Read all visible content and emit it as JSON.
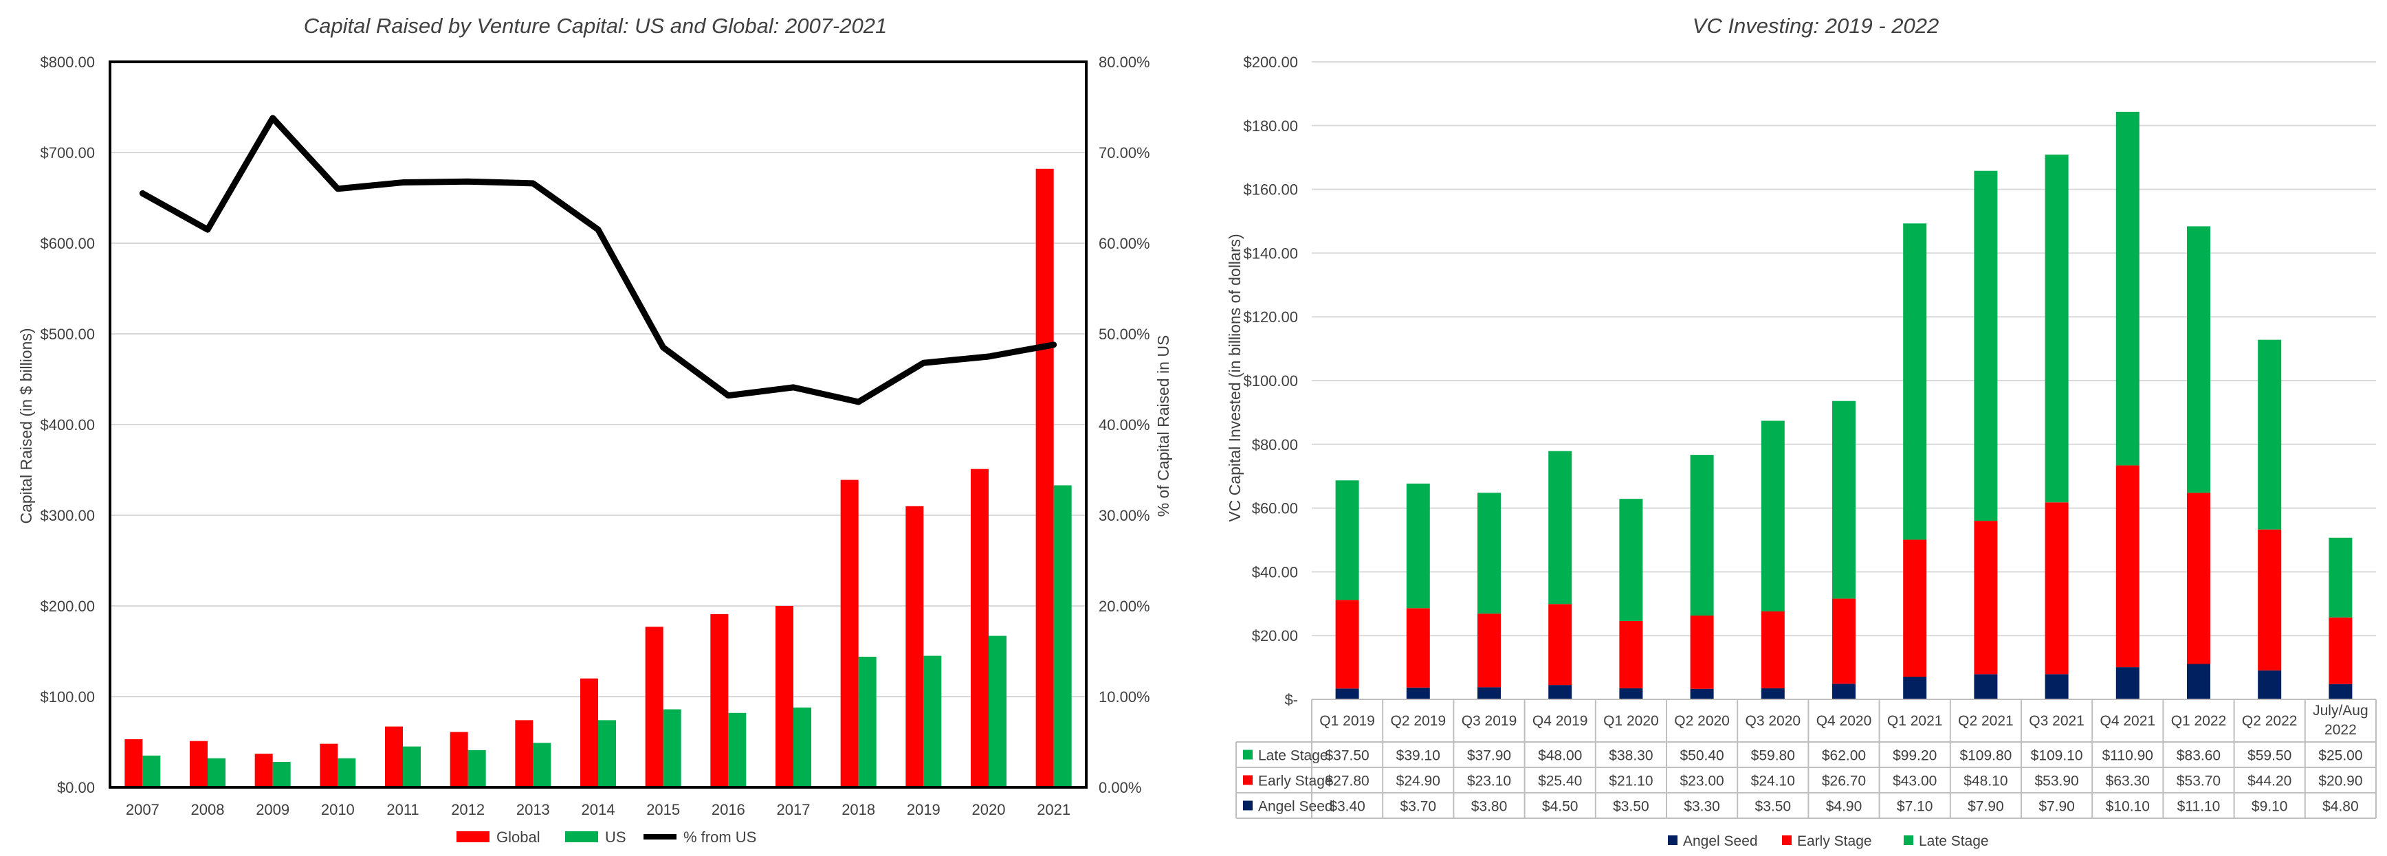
{
  "chart_data": [
    {
      "type": "bar",
      "title": "Capital Raised by Venture Capital: US and Global: 2007-2021",
      "ylabel": "Capital Raised (in $ billions)",
      "y2label": "% of Capital Raised in US",
      "ylim": [
        0,
        800
      ],
      "y2lim": [
        0,
        0.8
      ],
      "yticks": [
        "$0.00",
        "$100.00",
        "$200.00",
        "$300.00",
        "$400.00",
        "$500.00",
        "$600.00",
        "$700.00",
        "$800.00"
      ],
      "y2ticks": [
        "0.00%",
        "10.00%",
        "20.00%",
        "30.00%",
        "40.00%",
        "50.00%",
        "60.00%",
        "70.00%",
        "80.00%"
      ],
      "categories": [
        "2007",
        "2008",
        "2009",
        "2010",
        "2011",
        "2012",
        "2013",
        "2014",
        "2015",
        "2016",
        "2017",
        "2018",
        "2019",
        "2020",
        "2021"
      ],
      "series": [
        {
          "name": "Global",
          "type": "bar",
          "axis": "left",
          "color": "#ff0000",
          "values": [
            53,
            51,
            37,
            48,
            67,
            61,
            74,
            120,
            177,
            191,
            200,
            339,
            310,
            351,
            682
          ]
        },
        {
          "name": "US",
          "type": "bar",
          "axis": "left",
          "color": "#00b050",
          "values": [
            35,
            32,
            28,
            32,
            45,
            41,
            49,
            74,
            86,
            82,
            88,
            144,
            145,
            167,
            333
          ]
        },
        {
          "name": "% from US",
          "type": "line",
          "axis": "right",
          "color": "#000000",
          "values": [
            0.655,
            0.615,
            0.738,
            0.66,
            0.667,
            0.668,
            0.666,
            0.615,
            0.485,
            0.432,
            0.441,
            0.425,
            0.468,
            0.475,
            0.488
          ]
        }
      ],
      "legend_position": "bottom",
      "grid": true
    },
    {
      "type": "bar",
      "stacked": true,
      "title": "VC Investing: 2019 - 2022",
      "ylabel": "VC Capital  Invested (in billions of dollars)",
      "ylim": [
        0,
        200
      ],
      "yticks": [
        "$-",
        "$20.00",
        "$40.00",
        "$60.00",
        "$80.00",
        "$100.00",
        "$120.00",
        "$140.00",
        "$160.00",
        "$180.00",
        "$200.00"
      ],
      "categories": [
        "Q1 2019",
        "Q2 2019",
        "Q3 2019",
        "Q4 2019",
        "Q1 2020",
        "Q2 2020",
        "Q3 2020",
        "Q4 2020",
        "Q1 2021",
        "Q2 2021",
        "Q3 2021",
        "Q4 2021",
        "Q1 2022",
        "Q2 2022",
        "July/Aug 2022"
      ],
      "series": [
        {
          "name": "Angel Seed",
          "color": "#002060",
          "values": [
            3.4,
            3.7,
            3.8,
            4.5,
            3.5,
            3.3,
            3.5,
            4.9,
            7.1,
            7.9,
            7.9,
            10.1,
            11.1,
            9.1,
            4.8
          ],
          "labels": [
            "$3.40",
            "$3.70",
            "$3.80",
            "$4.50",
            "$3.50",
            "$3.30",
            "$3.50",
            "$4.90",
            "$7.10",
            "$7.90",
            "$7.90",
            "$10.10",
            "$11.10",
            "$9.10",
            "$4.80"
          ]
        },
        {
          "name": "Early Stage",
          "color": "#ff0000",
          "values": [
            27.8,
            24.9,
            23.1,
            25.4,
            21.1,
            23.0,
            24.1,
            26.7,
            43.0,
            48.1,
            53.9,
            63.3,
            53.7,
            44.2,
            20.9
          ],
          "labels": [
            "$27.80",
            "$24.90",
            "$23.10",
            "$25.40",
            "$21.10",
            "$23.00",
            "$24.10",
            "$26.70",
            "$43.00",
            "$48.10",
            "$53.90",
            "$63.30",
            "$53.70",
            "$44.20",
            "$20.90"
          ]
        },
        {
          "name": "Late Stage",
          "color": "#00b050",
          "values": [
            37.5,
            39.1,
            37.9,
            48.0,
            38.3,
            50.4,
            59.8,
            62.0,
            99.2,
            109.8,
            109.1,
            110.9,
            83.6,
            59.5,
            25.0
          ],
          "labels": [
            "$37.50",
            "$39.10",
            "$37.90",
            "$48.00",
            "$38.30",
            "$50.40",
            "$59.80",
            "$62.00",
            "$99.20",
            "$109.80",
            "$109.10",
            "$110.90",
            "$83.60",
            "$59.50",
            "$25.00"
          ]
        }
      ],
      "table_rows": [
        "Late Stage",
        "Early Stage",
        "Angel Seed"
      ],
      "legend_position": "bottom",
      "grid": true
    }
  ]
}
